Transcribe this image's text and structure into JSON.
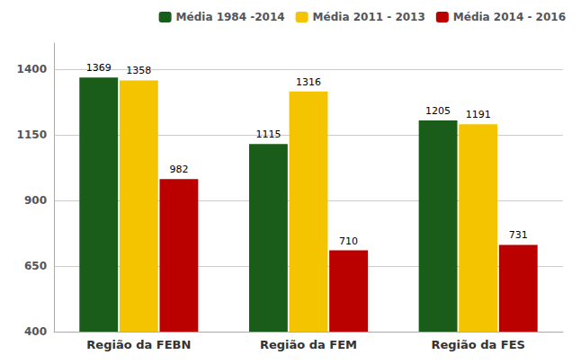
{
  "chart_data": {
    "type": "bar",
    "categories": [
      "Região da FEBN",
      "Região da FEM",
      "Região da FES"
    ],
    "series": [
      {
        "name": "Média 1984 -2014",
        "color": "#1a5c1a",
        "values": [
          1369,
          1115,
          1205
        ]
      },
      {
        "name": "Média 2011 - 2013",
        "color": "#f5c400",
        "values": [
          1358,
          1316,
          1191
        ]
      },
      {
        "name": "Média 2014 - 2016",
        "color": "#bb0000",
        "values": [
          982,
          710,
          731
        ]
      }
    ],
    "ylim": [
      400,
      1500
    ],
    "yticks": [
      400,
      650,
      900,
      1150,
      1400
    ],
    "grid": true,
    "legend": "upper right",
    "data_labels": true
  }
}
